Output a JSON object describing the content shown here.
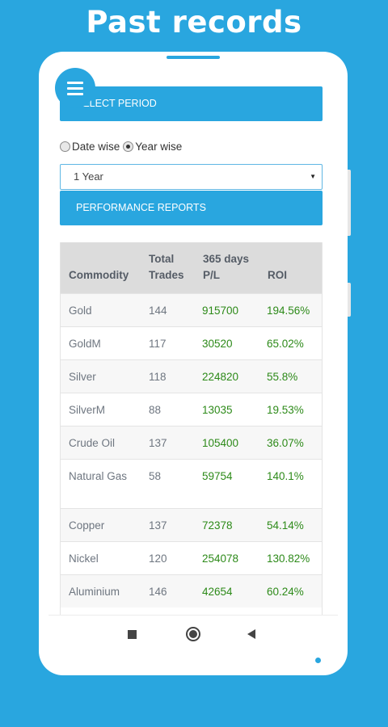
{
  "page_title": "Past records",
  "header": {
    "period_label": "SELECT PERIOD"
  },
  "period_options": {
    "date_wise": "Date wise",
    "year_wise": "Year wise",
    "selected": "year_wise"
  },
  "period_select": {
    "value": "1 Year"
  },
  "reports_header": "PERFORMANCE REPORTS",
  "table": {
    "columns": [
      "Commodity",
      "Total Trades",
      "365 days P/L",
      "ROI"
    ],
    "rows": [
      {
        "commodity": "Gold",
        "trades": "144",
        "pl": "915700",
        "roi": "194.56%"
      },
      {
        "commodity": "GoldM",
        "trades": "117",
        "pl": "30520",
        "roi": "65.02%"
      },
      {
        "commodity": "Silver",
        "trades": "118",
        "pl": "224820",
        "roi": "55.8%"
      },
      {
        "commodity": "SilverM",
        "trades": "88",
        "pl": "13035",
        "roi": "19.53%"
      },
      {
        "commodity": "Crude Oil",
        "trades": "137",
        "pl": "105400",
        "roi": "36.07%"
      },
      {
        "commodity": "Natural Gas",
        "trades": "58",
        "pl": "59754",
        "roi": "140.1%"
      },
      {
        "commodity": "Copper",
        "trades": "137",
        "pl": "72378",
        "roi": "54.14%"
      },
      {
        "commodity": "Nickel",
        "trades": "120",
        "pl": "254078",
        "roi": "130.82%"
      },
      {
        "commodity": "Aluminium",
        "trades": "146",
        "pl": "42654",
        "roi": "60.24%"
      }
    ]
  },
  "icons": {
    "menu": "hamburger-menu-icon",
    "recents": "square-recents-icon",
    "home": "circle-home-icon",
    "back": "triangle-back-icon"
  },
  "colors": {
    "brand": "#29a6df",
    "profit": "#2d8a19",
    "table_header_bg": "#dcdcdc"
  }
}
